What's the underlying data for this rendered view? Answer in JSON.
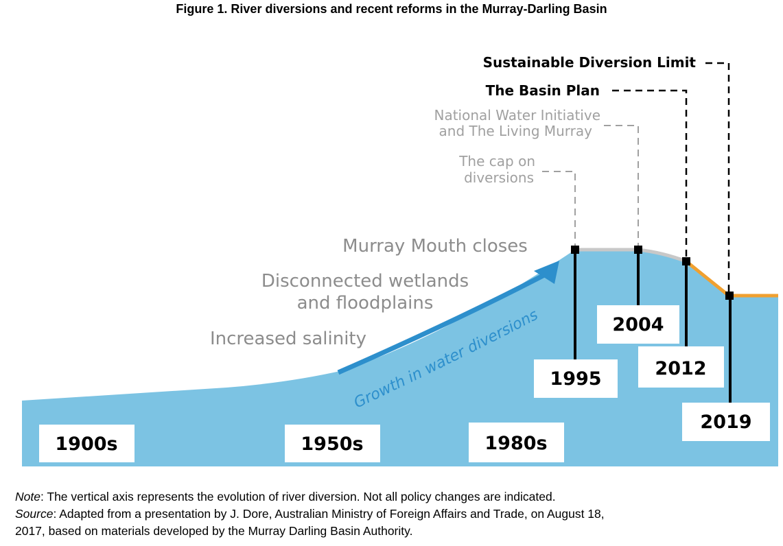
{
  "figure": {
    "title": "Figure 1. River diversions and recent reforms in the Murray-Darling Basin"
  },
  "colors": {
    "area": "#7cc3e3",
    "arrow": "#2d8fcc",
    "gray_line": "#c8c8c8",
    "orange_line": "#f0a030",
    "milestone_black": "#000000",
    "milestone_gray": "#a0a0a0",
    "impact_text": "#8c8c8c"
  },
  "impacts": {
    "mouth": "Murray Mouth closes",
    "wetlands_1": "Disconnected wetlands",
    "wetlands_2": "and floodplains",
    "salinity": "Increased salinity"
  },
  "growth_label": "Growth in water diversions",
  "milestones": {
    "sdl": "Sustainable Diversion Limit",
    "basin_plan": "The Basin Plan",
    "nwi_1": "National Water Initiative",
    "nwi_2": "and The Living Murray",
    "cap_1": "The cap on",
    "cap_2": "diversions"
  },
  "years": {
    "y1995": "1995",
    "y2004": "2004",
    "y2012": "2012",
    "y2019": "2019"
  },
  "eras": {
    "e1900": "1900s",
    "e1950": "1950s",
    "e1980": "1980s"
  },
  "note": {
    "note_label": "Note",
    "note_text": ": The vertical axis represents the evolution of river diversion. Not all policy changes are indicated.",
    "source_label": "Source",
    "source_text_1": ": Adapted from a presentation by J. Dore, Australian Ministry of Foreign Affairs and Trade, on August 18,",
    "source_text_2": "2017, based on materials developed by the Murray Darling Basin Authority."
  }
}
